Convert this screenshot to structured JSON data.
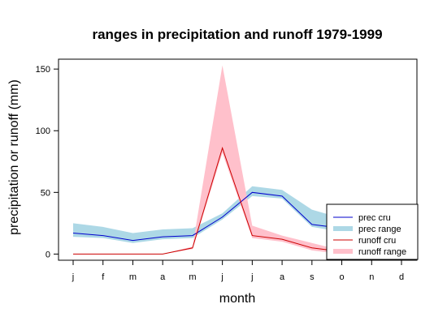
{
  "chart_data": {
    "type": "area",
    "title": "ranges in precipitation and runoff 1979-1999",
    "xlabel": "month",
    "ylabel": "precipitation or runoff (mm)",
    "categories": [
      "j",
      "f",
      "m",
      "a",
      "m",
      "j",
      "j",
      "a",
      "s",
      "o",
      "n",
      "d"
    ],
    "y_ticks": [
      0,
      50,
      100,
      150
    ],
    "ylim": [
      -5,
      158
    ],
    "grid": false,
    "legend_position": "bottom-right",
    "series": [
      {
        "name": "prec cru",
        "kind": "line",
        "color": "#0000cd",
        "values": [
          17,
          15,
          11,
          14,
          15,
          30,
          50,
          47,
          24,
          21,
          null,
          null
        ]
      },
      {
        "name": "prec range",
        "kind": "band",
        "color": "#add8e6",
        "lower": [
          14,
          13,
          9,
          12,
          13,
          28,
          47,
          45,
          22,
          18,
          null,
          null
        ],
        "upper": [
          25,
          22,
          17,
          20,
          21,
          33,
          55,
          52,
          36,
          29,
          null,
          null
        ]
      },
      {
        "name": "runoff cru",
        "kind": "line",
        "color": "#cc0000",
        "values": [
          0,
          0,
          0,
          0,
          5,
          86,
          15,
          12,
          5,
          2,
          null,
          null
        ]
      },
      {
        "name": "runoff range",
        "kind": "band",
        "color": "#ffc0cb",
        "lower": [
          0,
          0,
          0,
          0,
          4,
          82,
          13,
          10,
          3,
          0,
          null,
          null
        ],
        "upper": [
          0,
          0,
          0,
          0,
          6,
          153,
          23,
          15,
          9,
          3,
          null,
          null
        ]
      }
    ]
  }
}
